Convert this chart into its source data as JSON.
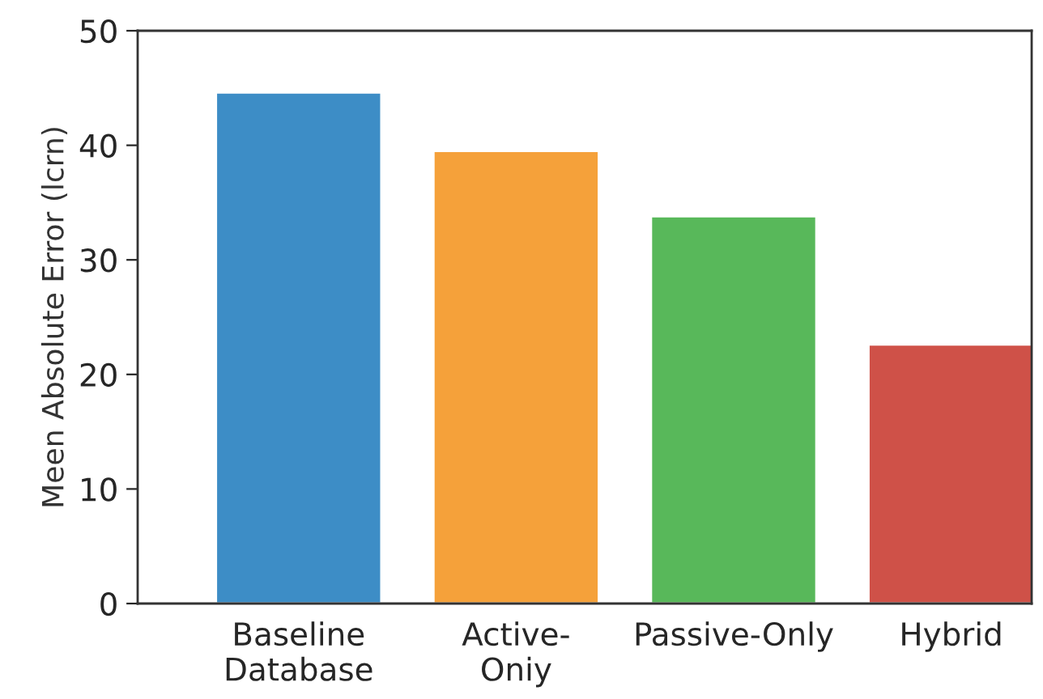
{
  "chart_data": {
    "type": "bar",
    "ylabel": "Meen Absolute Error (lcrn)",
    "categories": [
      "Baseline\nDatabase",
      "Active-\nOniy",
      "Passive-Only",
      "Hybrid"
    ],
    "values": [
      44.6,
      39.5,
      33.8,
      22.6
    ],
    "colors": [
      "#3d8dc6",
      "#f5a13a",
      "#58b85a",
      "#cf5148"
    ],
    "ylim": [
      0,
      50
    ],
    "yticks": [
      0,
      10,
      20,
      30,
      40,
      50
    ],
    "grid": false,
    "legend": false
  }
}
